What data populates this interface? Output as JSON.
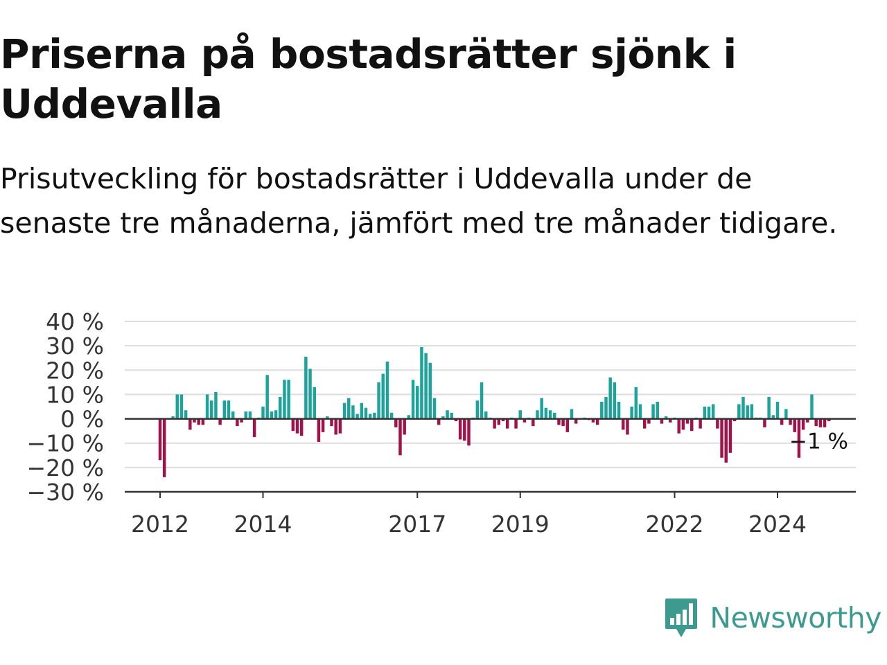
{
  "title": "Priserna på bostadsrätter sjönk i Uddevalla",
  "subtitle": "Prisutveckling för bostadsrätter i Uddevalla under de senaste tre månaderna, jämfört med tre månader tidigare.",
  "logo": {
    "text": "Newsworthy",
    "icon": "newsworthy-chart-icon"
  },
  "colors": {
    "positive": "#1ba39c",
    "negative": "#a1124a",
    "grid": "#dddddd",
    "axis": "#333333",
    "logo": "#3d9a8f"
  },
  "chart_data": {
    "type": "bar",
    "title": "",
    "xlabel": "",
    "ylabel": "",
    "ylim": [
      -30,
      40
    ],
    "y_ticks": [
      40,
      30,
      20,
      10,
      0,
      -10,
      -20,
      -30
    ],
    "y_tick_labels": [
      "40 %",
      "30 %",
      "20 %",
      "10 %",
      "0 %",
      "−10 %",
      "−20 %",
      "−30 %"
    ],
    "x_start": "2012-01",
    "x_end": "2025-06",
    "x_tick_labels": [
      {
        "date": "2012-01",
        "label": "2012"
      },
      {
        "date": "2014-01",
        "label": "2014"
      },
      {
        "date": "2017-01",
        "label": "2017"
      },
      {
        "date": "2019-01",
        "label": "2019"
      },
      {
        "date": "2022-01",
        "label": "2022"
      },
      {
        "date": "2024-01",
        "label": "2024"
      }
    ],
    "last_value_label": "−1 %",
    "grid": true,
    "series": [
      {
        "values": [
          {
            "date": "2012-01",
            "value": -17
          },
          {
            "date": "2012-02",
            "value": -24
          },
          {
            "date": "2012-04",
            "value": 1
          },
          {
            "date": "2012-05",
            "value": 10
          },
          {
            "date": "2012-06",
            "value": 10
          },
          {
            "date": "2012-07",
            "value": 3.5
          },
          {
            "date": "2012-08",
            "value": -4.5
          },
          {
            "date": "2012-09",
            "value": -1.5
          },
          {
            "date": "2012-10",
            "value": -2.5
          },
          {
            "date": "2012-11",
            "value": -2.5
          },
          {
            "date": "2012-12",
            "value": 10
          },
          {
            "date": "2013-01",
            "value": 7.5
          },
          {
            "date": "2013-02",
            "value": 11
          },
          {
            "date": "2013-03",
            "value": -2.5
          },
          {
            "date": "2013-04",
            "value": 7.5
          },
          {
            "date": "2013-05",
            "value": 7.5
          },
          {
            "date": "2013-06",
            "value": 3
          },
          {
            "date": "2013-07",
            "value": -3
          },
          {
            "date": "2013-08",
            "value": -1.5
          },
          {
            "date": "2013-09",
            "value": 3
          },
          {
            "date": "2013-10",
            "value": 3
          },
          {
            "date": "2013-11",
            "value": -7.5
          },
          {
            "date": "2013-12",
            "value": 0.5
          },
          {
            "date": "2014-01",
            "value": 5
          },
          {
            "date": "2014-02",
            "value": 18
          },
          {
            "date": "2014-03",
            "value": 3
          },
          {
            "date": "2014-04",
            "value": 3.5
          },
          {
            "date": "2014-05",
            "value": 9
          },
          {
            "date": "2014-06",
            "value": 16
          },
          {
            "date": "2014-07",
            "value": 16
          },
          {
            "date": "2014-08",
            "value": -5
          },
          {
            "date": "2014-09",
            "value": -6
          },
          {
            "date": "2014-10",
            "value": -7
          },
          {
            "date": "2014-11",
            "value": 25.5
          },
          {
            "date": "2014-12",
            "value": 20.5
          },
          {
            "date": "2015-01",
            "value": 13
          },
          {
            "date": "2015-02",
            "value": -9.5
          },
          {
            "date": "2015-03",
            "value": -5.5
          },
          {
            "date": "2015-04",
            "value": 1
          },
          {
            "date": "2015-05",
            "value": -3
          },
          {
            "date": "2015-06",
            "value": -6.5
          },
          {
            "date": "2015-07",
            "value": -6
          },
          {
            "date": "2015-08",
            "value": 6.5
          },
          {
            "date": "2015-09",
            "value": 8.5
          },
          {
            "date": "2015-10",
            "value": 5.5
          },
          {
            "date": "2015-11",
            "value": 2
          },
          {
            "date": "2015-12",
            "value": 6.5
          },
          {
            "date": "2016-01",
            "value": 4.5
          },
          {
            "date": "2016-02",
            "value": 2
          },
          {
            "date": "2016-03",
            "value": 2.5
          },
          {
            "date": "2016-04",
            "value": 15
          },
          {
            "date": "2016-05",
            "value": 18.5
          },
          {
            "date": "2016-06",
            "value": 23.5
          },
          {
            "date": "2016-07",
            "value": 2.5
          },
          {
            "date": "2016-08",
            "value": -3.5
          },
          {
            "date": "2016-09",
            "value": -15
          },
          {
            "date": "2016-10",
            "value": -6.5
          },
          {
            "date": "2016-11",
            "value": 1.5
          },
          {
            "date": "2016-12",
            "value": 16
          },
          {
            "date": "2017-01",
            "value": 13.5
          },
          {
            "date": "2017-02",
            "value": 29.5
          },
          {
            "date": "2017-03",
            "value": 27
          },
          {
            "date": "2017-04",
            "value": 23
          },
          {
            "date": "2017-05",
            "value": 8.5
          },
          {
            "date": "2017-06",
            "value": -2.5
          },
          {
            "date": "2017-07",
            "value": 1
          },
          {
            "date": "2017-08",
            "value": 3.5
          },
          {
            "date": "2017-09",
            "value": 2.5
          },
          {
            "date": "2017-10",
            "value": -1
          },
          {
            "date": "2017-11",
            "value": -8.5
          },
          {
            "date": "2017-12",
            "value": -9
          },
          {
            "date": "2018-01",
            "value": -11
          },
          {
            "date": "2018-02",
            "value": 0.5
          },
          {
            "date": "2018-03",
            "value": 7.5
          },
          {
            "date": "2018-04",
            "value": 15
          },
          {
            "date": "2018-05",
            "value": 3
          },
          {
            "date": "2018-06",
            "value": 0.5
          },
          {
            "date": "2018-07",
            "value": -4
          },
          {
            "date": "2018-08",
            "value": -2.5
          },
          {
            "date": "2018-09",
            "value": -1
          },
          {
            "date": "2018-10",
            "value": -4
          },
          {
            "date": "2018-11",
            "value": 0.5
          },
          {
            "date": "2018-12",
            "value": -4
          },
          {
            "date": "2019-01",
            "value": 3.5
          },
          {
            "date": "2019-02",
            "value": -1.5
          },
          {
            "date": "2019-03",
            "value": 0.5
          },
          {
            "date": "2019-04",
            "value": -3
          },
          {
            "date": "2019-05",
            "value": 3.5
          },
          {
            "date": "2019-06",
            "value": 8.5
          },
          {
            "date": "2019-07",
            "value": 4.5
          },
          {
            "date": "2019-08",
            "value": 3.5
          },
          {
            "date": "2019-09",
            "value": 2.5
          },
          {
            "date": "2019-10",
            "value": -2.5
          },
          {
            "date": "2019-11",
            "value": -3
          },
          {
            "date": "2019-12",
            "value": -5.5
          },
          {
            "date": "2020-01",
            "value": 4
          },
          {
            "date": "2020-02",
            "value": -2
          },
          {
            "date": "2020-04",
            "value": 0.5
          },
          {
            "date": "2020-05",
            "value": -0.5
          },
          {
            "date": "2020-06",
            "value": -1.5
          },
          {
            "date": "2020-07",
            "value": -2.5
          },
          {
            "date": "2020-08",
            "value": 7
          },
          {
            "date": "2020-09",
            "value": 9
          },
          {
            "date": "2020-10",
            "value": 17
          },
          {
            "date": "2020-11",
            "value": 15
          },
          {
            "date": "2020-12",
            "value": 7
          },
          {
            "date": "2021-01",
            "value": -4.5
          },
          {
            "date": "2021-02",
            "value": -6.5
          },
          {
            "date": "2021-03",
            "value": 5
          },
          {
            "date": "2021-04",
            "value": 13
          },
          {
            "date": "2021-05",
            "value": 6
          },
          {
            "date": "2021-06",
            "value": -4
          },
          {
            "date": "2021-07",
            "value": -2
          },
          {
            "date": "2021-08",
            "value": 6
          },
          {
            "date": "2021-09",
            "value": 7
          },
          {
            "date": "2021-10",
            "value": -2
          },
          {
            "date": "2021-11",
            "value": 1
          },
          {
            "date": "2021-12",
            "value": -1.5
          },
          {
            "date": "2022-01",
            "value": 0.5
          },
          {
            "date": "2022-02",
            "value": -6
          },
          {
            "date": "2022-03",
            "value": -4.5
          },
          {
            "date": "2022-04",
            "value": -2
          },
          {
            "date": "2022-05",
            "value": -5
          },
          {
            "date": "2022-06",
            "value": 0.5
          },
          {
            "date": "2022-07",
            "value": -4
          },
          {
            "date": "2022-08",
            "value": 5
          },
          {
            "date": "2022-09",
            "value": 5
          },
          {
            "date": "2022-10",
            "value": 6
          },
          {
            "date": "2022-11",
            "value": -4
          },
          {
            "date": "2022-12",
            "value": -16
          },
          {
            "date": "2023-01",
            "value": -18
          },
          {
            "date": "2023-02",
            "value": -14
          },
          {
            "date": "2023-03",
            "value": -1
          },
          {
            "date": "2023-04",
            "value": 6
          },
          {
            "date": "2023-05",
            "value": 9
          },
          {
            "date": "2023-06",
            "value": 5.5
          },
          {
            "date": "2023-07",
            "value": 6
          },
          {
            "date": "2023-08",
            "value": 0.5
          },
          {
            "date": "2023-09",
            "value": 0.5
          },
          {
            "date": "2023-10",
            "value": -3.5
          },
          {
            "date": "2023-11",
            "value": 9
          },
          {
            "date": "2023-12",
            "value": 1.5
          },
          {
            "date": "2024-01",
            "value": 7
          },
          {
            "date": "2024-02",
            "value": -2.5
          },
          {
            "date": "2024-03",
            "value": 4
          },
          {
            "date": "2024-04",
            "value": -2.5
          },
          {
            "date": "2024-05",
            "value": -5.5
          },
          {
            "date": "2024-06",
            "value": -16
          },
          {
            "date": "2024-07",
            "value": -4.5
          },
          {
            "date": "2024-08",
            "value": -1.5
          },
          {
            "date": "2024-09",
            "value": 10
          },
          {
            "date": "2024-10",
            "value": -3
          },
          {
            "date": "2024-11",
            "value": -3.5
          },
          {
            "date": "2024-12",
            "value": -3.5
          },
          {
            "date": "2025-01",
            "value": -1
          }
        ]
      }
    ]
  }
}
